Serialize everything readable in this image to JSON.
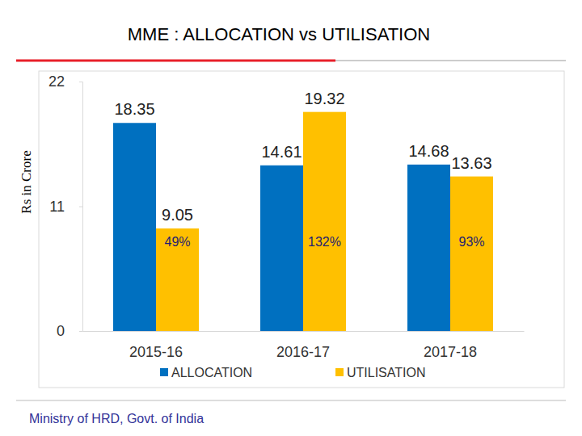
{
  "chart_data": {
    "type": "bar",
    "title": "MME : ALLOCATION vs UTILISATION",
    "y_label": "Rs in Crore",
    "categories": [
      "2015-16",
      "2016-17",
      "2017-18"
    ],
    "series": [
      {
        "name": "ALLOCATION",
        "color": "#0070c0",
        "values": [
          18.35,
          14.61,
          14.68
        ]
      },
      {
        "name": "UTILISATION",
        "color": "#ffc000",
        "values": [
          9.05,
          19.32,
          13.63
        ]
      }
    ],
    "annotations": [
      "49%",
      "132%",
      "93%"
    ],
    "footer": "Ministry of HRD, Govt. of India",
    "ylim": [
      0,
      22
    ],
    "yticks": [
      0,
      11,
      22
    ],
    "grid": false,
    "legend": "bottom",
    "data_labels": true
  }
}
